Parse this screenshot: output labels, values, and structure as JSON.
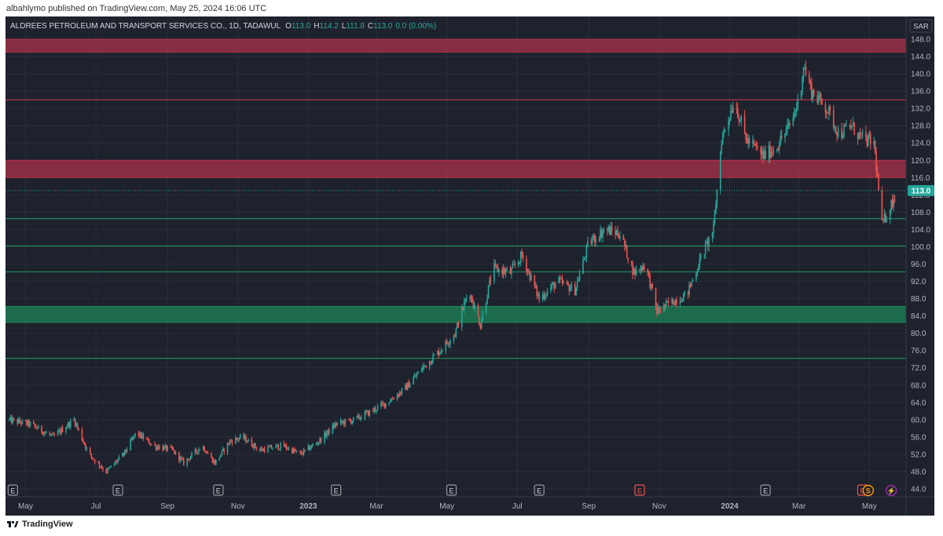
{
  "publisher_line": "albahlymo published on TradingView.com, May 25, 2024 16:06 UTC",
  "footer": {
    "logo_icon": "tradingview-logo-icon",
    "label": "TradingView"
  },
  "legend": {
    "symbol": "ALDREES PETROLEUM AND TRANSPORT SERVICES CO., 1D, TADAWUL",
    "o_label": "O",
    "o_value": "113.0",
    "h_label": "H",
    "h_value": "114.2",
    "l_label": "L",
    "l_value": "111.8",
    "c_label": "C",
    "c_value": "113.0",
    "change": "0.0 (0.00%)"
  },
  "currency": "SAR",
  "last_price_label": "113.0",
  "colors": {
    "background": "#1e222d",
    "up": "#26a69a",
    "down": "#ef5350",
    "resistance_zone": "#b2324a",
    "support_zone": "#1b8a5a",
    "grid": "#2a2e39",
    "axis_text": "#b2b5be",
    "price_badge": "#26a69a"
  },
  "chart_data": {
    "type": "candlestick",
    "title": "",
    "ylim": [
      42,
      150
    ],
    "y_ticks": [
      "44.0",
      "48.0",
      "52.0",
      "56.0",
      "60.0",
      "64.0",
      "68.0",
      "72.0",
      "76.0",
      "80.0",
      "84.0",
      "88.0",
      "92.0",
      "96.0",
      "100.0",
      "104.0",
      "108.0",
      "112.0",
      "116.0",
      "120.0",
      "124.0",
      "128.0",
      "132.0",
      "136.0",
      "140.0",
      "144.0",
      "148.0"
    ],
    "x_range": [
      "2022-04-15",
      "2024-05-26"
    ],
    "x_ticks": [
      {
        "label": "May",
        "date": "2022-05-01"
      },
      {
        "label": "Jul",
        "date": "2022-07-01"
      },
      {
        "label": "Sep",
        "date": "2022-09-01"
      },
      {
        "label": "Nov",
        "date": "2022-11-01"
      },
      {
        "label": "2023",
        "date": "2023-01-01"
      },
      {
        "label": "Mar",
        "date": "2023-03-01"
      },
      {
        "label": "May",
        "date": "2023-05-01"
      },
      {
        "label": "Jul",
        "date": "2023-07-01"
      },
      {
        "label": "Sep",
        "date": "2023-09-01"
      },
      {
        "label": "Nov",
        "date": "2023-11-01"
      },
      {
        "label": "2024",
        "date": "2024-01-01"
      },
      {
        "label": "Mar",
        "date": "2024-03-01"
      },
      {
        "label": "May",
        "date": "2024-05-01"
      }
    ],
    "price_path": [
      {
        "date": "2022-04-15",
        "close": 60
      },
      {
        "date": "2022-05-05",
        "close": 59
      },
      {
        "date": "2022-05-25",
        "close": 56
      },
      {
        "date": "2022-06-12",
        "close": 60
      },
      {
        "date": "2022-06-25",
        "close": 52
      },
      {
        "date": "2022-07-10",
        "close": 48
      },
      {
        "date": "2022-07-25",
        "close": 52
      },
      {
        "date": "2022-08-05",
        "close": 57
      },
      {
        "date": "2022-08-20",
        "close": 54
      },
      {
        "date": "2022-09-05",
        "close": 53
      },
      {
        "date": "2022-09-15",
        "close": 50
      },
      {
        "date": "2022-10-01",
        "close": 54
      },
      {
        "date": "2022-10-12",
        "close": 50
      },
      {
        "date": "2022-10-25",
        "close": 55
      },
      {
        "date": "2022-11-05",
        "close": 56
      },
      {
        "date": "2022-11-20",
        "close": 53
      },
      {
        "date": "2022-12-10",
        "close": 54
      },
      {
        "date": "2022-12-25",
        "close": 52
      },
      {
        "date": "2023-01-10",
        "close": 55
      },
      {
        "date": "2023-01-25",
        "close": 59
      },
      {
        "date": "2023-02-10",
        "close": 60
      },
      {
        "date": "2023-02-25",
        "close": 62
      },
      {
        "date": "2023-03-10",
        "close": 64
      },
      {
        "date": "2023-03-25",
        "close": 67
      },
      {
        "date": "2023-04-10",
        "close": 72
      },
      {
        "date": "2023-04-25",
        "close": 76
      },
      {
        "date": "2023-05-08",
        "close": 80
      },
      {
        "date": "2023-05-20",
        "close": 90
      },
      {
        "date": "2023-05-30",
        "close": 82
      },
      {
        "date": "2023-06-10",
        "close": 95
      },
      {
        "date": "2023-06-25",
        "close": 94
      },
      {
        "date": "2023-07-05",
        "close": 98
      },
      {
        "date": "2023-07-20",
        "close": 88
      },
      {
        "date": "2023-08-05",
        "close": 92
      },
      {
        "date": "2023-08-20",
        "close": 90
      },
      {
        "date": "2023-09-01",
        "close": 101
      },
      {
        "date": "2023-09-15",
        "close": 104
      },
      {
        "date": "2023-09-28",
        "close": 103
      },
      {
        "date": "2023-10-10",
        "close": 94
      },
      {
        "date": "2023-10-20",
        "close": 96
      },
      {
        "date": "2023-10-30",
        "close": 85
      },
      {
        "date": "2023-11-10",
        "close": 87
      },
      {
        "date": "2023-11-25",
        "close": 89
      },
      {
        "date": "2023-12-08",
        "close": 98
      },
      {
        "date": "2023-12-18",
        "close": 104
      },
      {
        "date": "2023-12-25",
        "close": 125
      },
      {
        "date": "2024-01-05",
        "close": 134
      },
      {
        "date": "2024-01-15",
        "close": 125
      },
      {
        "date": "2024-01-30",
        "close": 121
      },
      {
        "date": "2024-02-10",
        "close": 123
      },
      {
        "date": "2024-02-22",
        "close": 128
      },
      {
        "date": "2024-03-01",
        "close": 134
      },
      {
        "date": "2024-03-05",
        "close": 142
      },
      {
        "date": "2024-03-12",
        "close": 136
      },
      {
        "date": "2024-03-25",
        "close": 132
      },
      {
        "date": "2024-04-05",
        "close": 126
      },
      {
        "date": "2024-04-15",
        "close": 128
      },
      {
        "date": "2024-04-25",
        "close": 125
      },
      {
        "date": "2024-05-05",
        "close": 124
      },
      {
        "date": "2024-05-12",
        "close": 105
      },
      {
        "date": "2024-05-25",
        "close": 113
      }
    ],
    "horizontal_zones": [
      {
        "kind": "resistance",
        "from": 145,
        "to": 148
      },
      {
        "kind": "resistance",
        "from": 116,
        "to": 120
      },
      {
        "kind": "support",
        "from": 82.5,
        "to": 86.2
      }
    ],
    "horizontal_lines": [
      {
        "kind": "resistance",
        "price": 134
      },
      {
        "kind": "support",
        "price": 106.5
      },
      {
        "kind": "support",
        "price": 100.2
      },
      {
        "kind": "support",
        "price": 94.2
      },
      {
        "kind": "support",
        "price": 74.2
      }
    ],
    "last_price": 113.0,
    "grid": true,
    "event_markers": [
      {
        "date": "2022-04-20",
        "letter": "E",
        "tone": "neutral"
      },
      {
        "date": "2022-07-20",
        "letter": "E",
        "tone": "neutral"
      },
      {
        "date": "2022-10-15",
        "letter": "E",
        "tone": "neutral"
      },
      {
        "date": "2023-01-25",
        "letter": "E",
        "tone": "neutral"
      },
      {
        "date": "2023-05-05",
        "letter": "E",
        "tone": "neutral"
      },
      {
        "date": "2023-07-20",
        "letter": "E",
        "tone": "neutral"
      },
      {
        "date": "2023-10-15",
        "letter": "E",
        "tone": "negative"
      },
      {
        "date": "2024-02-01",
        "letter": "E",
        "tone": "neutral"
      },
      {
        "date": "2024-04-25",
        "letter": "E",
        "tone": "negative"
      },
      {
        "date": "2024-04-30",
        "letter": "S",
        "tone": "split"
      },
      {
        "date": "2024-05-20",
        "letter": "⚡",
        "tone": "event"
      }
    ]
  }
}
